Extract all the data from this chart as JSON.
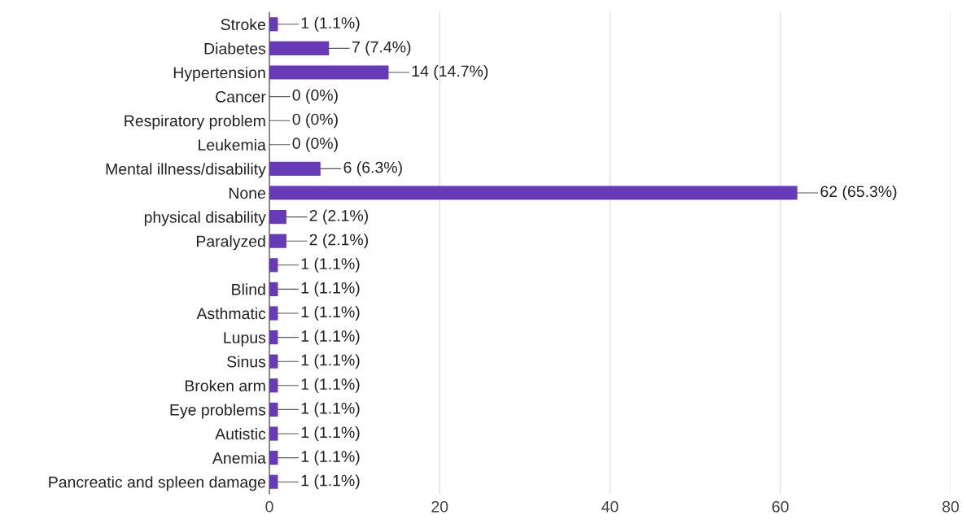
{
  "chart_data": {
    "type": "bar",
    "orientation": "horizontal",
    "categories": [
      "Stroke",
      "Diabetes",
      "Hypertension",
      "Cancer",
      "Respiratory problem",
      "Leukemia",
      "Mental illness/disability",
      "None",
      "physical disability",
      "Paralyzed",
      null,
      "Blind",
      "Asthmatic",
      "Lupus",
      "Sinus",
      "Broken arm",
      "Eye problems",
      "Autistic",
      "Anemia",
      "Pancreatic and spleen damage"
    ],
    "values": [
      1,
      7,
      14,
      0,
      0,
      0,
      6,
      62,
      2,
      2,
      1,
      1,
      1,
      1,
      1,
      1,
      1,
      1,
      1,
      1
    ],
    "value_labels": [
      "1 (1.1%)",
      "7 (7.4%)",
      "14 (14.7%)",
      "0 (0%)",
      "0 (0%)",
      "0 (0%)",
      "6 (6.3%)",
      "62 (65.3%)",
      "2 (2.1%)",
      "2 (2.1%)",
      "1 (1.1%)",
      "1 (1.1%)",
      "1 (1.1%)",
      "1 (1.1%)",
      "1 (1.1%)",
      "1 (1.1%)",
      "1 (1.1%)",
      "1 (1.1%)",
      "1 (1.1%)",
      "1 (1.1%)"
    ],
    "color": "#673ab7",
    "xlim": [
      0,
      80
    ],
    "xticks": [
      0,
      20,
      40,
      60,
      80
    ],
    "grid": "x",
    "legend": false
  }
}
